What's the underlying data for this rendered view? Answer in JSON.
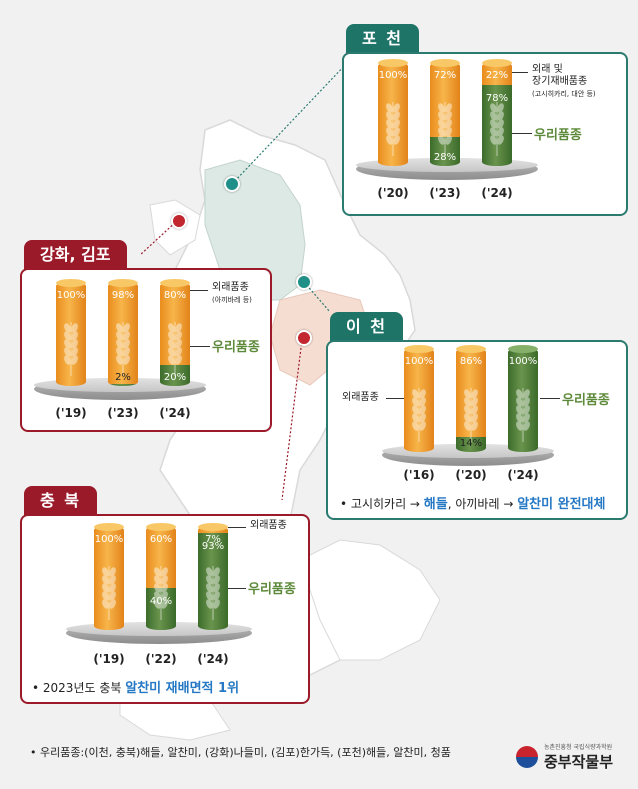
{
  "pocheon": {
    "title": "포 천",
    "years": [
      "('20)",
      "('23)",
      "('24)"
    ],
    "bars": [
      {
        "foreign": "100%",
        "native": null,
        "native_share": 0
      },
      {
        "foreign": "72%",
        "native": "28%",
        "native_share": 0.28
      },
      {
        "foreign": "22%",
        "native": "78%",
        "native_share": 0.78
      }
    ],
    "foreign_label": "외래 및\n장기재배품종",
    "foreign_sub": "(고시히카리, 대안 등)",
    "native_label": "우리품종"
  },
  "ganghwa": {
    "title": "강화, 김포",
    "years": [
      "('19)",
      "('23)",
      "('24)"
    ],
    "bars": [
      {
        "foreign": "100%",
        "native": null,
        "native_share": 0
      },
      {
        "foreign": "98%",
        "native": "2%",
        "native_share": 0.02
      },
      {
        "foreign": "80%",
        "native": "20%",
        "native_share": 0.2
      }
    ],
    "foreign_label": "외래품종",
    "foreign_sub": "(아끼바레 등)",
    "native_label": "우리품종"
  },
  "icheon": {
    "title": "이 천",
    "years": [
      "('16)",
      "('20)",
      "('24)"
    ],
    "bars": [
      {
        "foreign": "100%",
        "native": null,
        "native_share": 0
      },
      {
        "foreign": "86%",
        "native": "14%",
        "native_share": 0.14
      },
      {
        "foreign": null,
        "native": "100%",
        "native_share": 1
      }
    ],
    "foreign_label": "외래품종",
    "native_label": "우리품종",
    "note_prefix": "고시히카리 → ",
    "note_hl1": "해들",
    "note_mid": ", 아끼바레 → ",
    "note_hl2": "알찬미 완전대체"
  },
  "chungbuk": {
    "title": "충 북",
    "years": [
      "('19)",
      "('22)",
      "('24)"
    ],
    "bars": [
      {
        "foreign": "100%",
        "native": null,
        "native_share": 0
      },
      {
        "foreign": "60%",
        "native": "40%",
        "native_share": 0.4
      },
      {
        "foreign": "7%",
        "native": "93%",
        "native_share": 0.93
      }
    ],
    "foreign_label": "외래품종",
    "native_label": "우리품종",
    "note_prefix": "2023년도 충북 ",
    "note_hl": "알찬미 재배면적 1위"
  },
  "footer": "우리품종:(이천, 충북)해들, 알찬미, (강화)나들미, (김포)한가득, (포천)해들, 알찬미, 청품",
  "logo": {
    "sub": "농촌진흥청  국립식량과학원",
    "main": "중부작물부"
  },
  "colors": {
    "foreign": "#f0a030",
    "native": "#5d8a3a",
    "teal": "#1f7468",
    "red": "#9a1a2a"
  }
}
